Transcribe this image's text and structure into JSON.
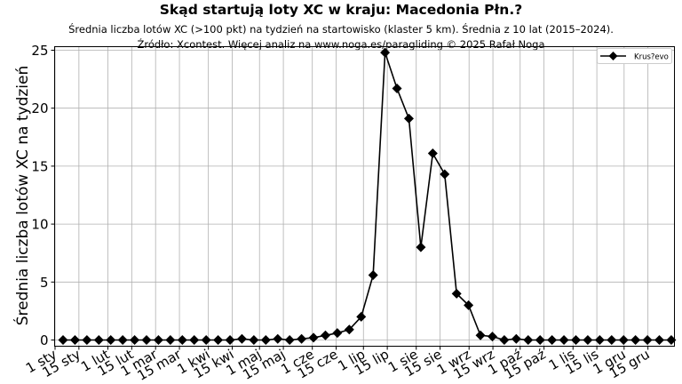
{
  "header": {
    "title": "Skąd startują loty XC w kraju: Macedonia Płn.?",
    "subtitle": "Średnia liczba lotów XC (>100 pkt) na tydzień na startowisko (klaster 5 km). Średnia z 10 lat (2015–2024).",
    "source": "Źródło: Xcontest. Więcej analiz na www.noga.es/paragliding © 2025 Rafał Noga"
  },
  "chart_data": {
    "type": "line",
    "title": "Skąd startują loty XC w kraju: Macedonia Płn.?",
    "subtitle": "Średnia liczba lotów XC (>100 pkt) na tydzień na startowisko (klaster 5 km). Średnia z 10 lat (2015–2024).",
    "xlabel": "",
    "ylabel": "Średnia liczba lotów XC na tydzień",
    "ylim": [
      0,
      25
    ],
    "yticks": [
      0,
      5,
      10,
      15,
      20,
      25
    ],
    "grid": true,
    "legend_position": "upper right",
    "x_tick_labels": [
      "1 sty",
      "15 sty",
      "1 lut",
      "15 lut",
      "1 mar",
      "15 mar",
      "1 kwi",
      "15 kwi",
      "1 maj",
      "15 maj",
      "1 cze",
      "15 cze",
      "1 lip",
      "15 lip",
      "1 sie",
      "15 sie",
      "1 wrz",
      "15 wrz",
      "1 paź",
      "15 paź",
      "1 lis",
      "15 lis",
      "1 gru",
      "15 gru"
    ],
    "x_tick_days": [
      1,
      15,
      32,
      46,
      60,
      74,
      91,
      105,
      121,
      135,
      152,
      166,
      182,
      196,
      213,
      227,
      244,
      258,
      274,
      288,
      305,
      319,
      335,
      349
    ],
    "x": [
      1,
      2,
      3,
      4,
      5,
      6,
      7,
      8,
      9,
      10,
      11,
      12,
      13,
      14,
      15,
      16,
      17,
      18,
      19,
      20,
      21,
      22,
      23,
      24,
      25,
      26,
      27,
      28,
      29,
      30,
      31,
      32,
      33,
      34,
      35,
      36,
      37,
      38,
      39,
      40,
      41,
      42,
      43,
      44,
      45,
      46,
      47,
      48,
      49,
      50,
      51,
      52
    ],
    "series": [
      {
        "name": "Krus?evo",
        "color": "#000000",
        "marker": "diamond",
        "values": [
          0,
          0,
          0,
          0,
          0,
          0,
          0,
          0,
          0,
          0,
          0,
          0,
          0,
          0,
          0,
          0.1,
          0,
          0,
          0.1,
          0,
          0.1,
          0.2,
          0.4,
          0.6,
          0.9,
          2.0,
          5.6,
          24.8,
          21.7,
          19.1,
          8.0,
          16.1,
          14.3,
          4.0,
          3.0,
          0.4,
          0.3,
          0,
          0.1,
          0,
          0,
          0,
          0,
          0,
          0,
          0,
          0,
          0,
          0,
          0,
          0,
          0
        ]
      }
    ]
  }
}
